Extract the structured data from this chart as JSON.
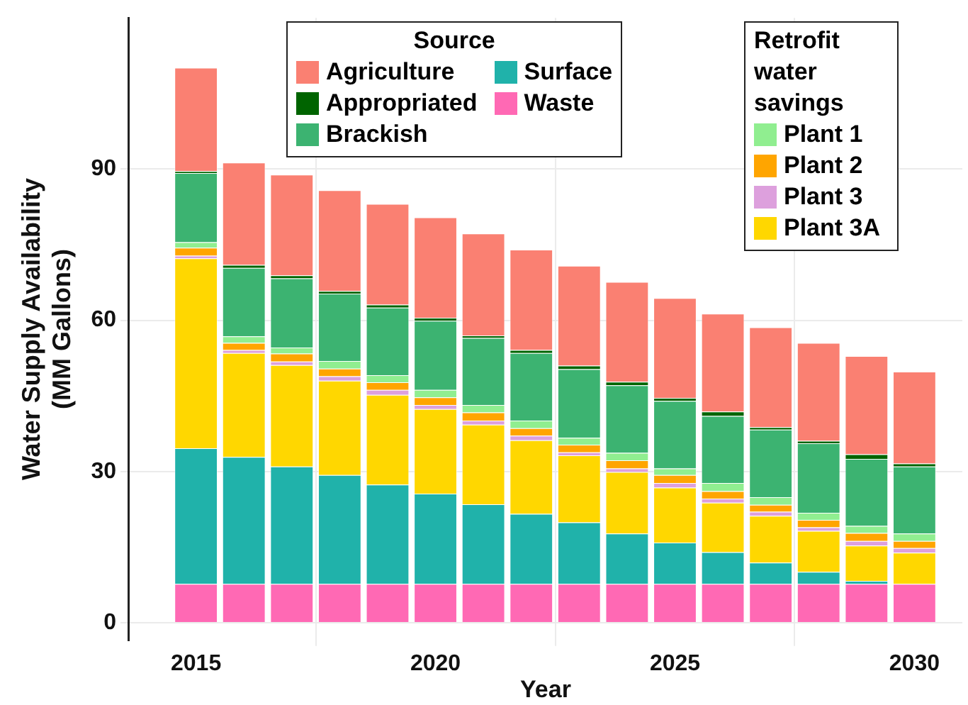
{
  "chart_data": {
    "type": "bar",
    "stacked": true,
    "xlabel": "Year",
    "ylabel": "Water Supply Availability\n(MM Gallons)",
    "legend_title": [
      "Source",
      "Retrofit water savings"
    ],
    "legend": "top",
    "grid": true,
    "x": [
      2015,
      2016,
      2017,
      2018,
      2019,
      2020,
      2021,
      2022,
      2023,
      2024,
      2025,
      2026,
      2027,
      2028,
      2029,
      2030
    ],
    "xlim": [
      2013.6,
      2031
    ],
    "xticks": [
      2015,
      2020,
      2025,
      2030
    ],
    "ylim": [
      -3.5,
      120
    ],
    "yticks": [
      0,
      30,
      60,
      90
    ],
    "series": [
      {
        "name": "Waste",
        "color": "#ff69b4",
        "values": [
          7.7,
          7.7,
          7.7,
          7.7,
          7.7,
          7.7,
          7.7,
          7.7,
          7.7,
          7.7,
          7.7,
          7.7,
          7.7,
          7.7,
          7.7,
          7.7
        ]
      },
      {
        "name": "Surface",
        "color": "#20b2aa",
        "values": [
          26.9,
          25.2,
          23.3,
          21.6,
          19.7,
          17.9,
          15.8,
          13.9,
          12.2,
          10.0,
          8.2,
          6.3,
          4.2,
          2.4,
          0.6,
          0
        ]
      },
      {
        "name": "Plant 3A",
        "color": "#ffd700",
        "values": [
          37.7,
          20.6,
          20.1,
          18.7,
          17.8,
          16.8,
          15.8,
          14.6,
          13.3,
          12.2,
          10.9,
          9.8,
          9.3,
          8.1,
          7.0,
          6.2
        ]
      },
      {
        "name": "Plant 3",
        "color": "#dda0dd",
        "values": [
          0.5,
          0.6,
          0.7,
          0.9,
          1.0,
          0.8,
          0.8,
          0.9,
          0.6,
          0.7,
          0.9,
          0.8,
          0.8,
          0.7,
          0.9,
          0.9
        ]
      },
      {
        "name": "Plant 2",
        "color": "#ffa500",
        "values": [
          1.6,
          1.4,
          1.6,
          1.5,
          1.5,
          1.5,
          1.6,
          1.5,
          1.5,
          1.6,
          1.6,
          1.5,
          1.4,
          1.5,
          1.6,
          1.4
        ]
      },
      {
        "name": "Plant 1",
        "color": "#90ee90",
        "values": [
          1.1,
          1.3,
          1.2,
          1.5,
          1.4,
          1.5,
          1.5,
          1.5,
          1.4,
          1.5,
          1.3,
          1.6,
          1.5,
          1.4,
          1.4,
          1.5
        ]
      },
      {
        "name": "Brackish",
        "color": "#3cb371",
        "values": [
          13.7,
          13.6,
          13.7,
          13.4,
          13.4,
          13.7,
          13.3,
          13.4,
          13.6,
          13.4,
          13.4,
          13.3,
          13.4,
          13.8,
          13.3,
          13.3
        ]
      },
      {
        "name": "Appropriated",
        "color": "#006400",
        "values": [
          0.4,
          0.6,
          0.6,
          0.5,
          0.6,
          0.6,
          0.5,
          0.6,
          0.7,
          0.7,
          0.6,
          0.9,
          0.5,
          0.5,
          0.9,
          0.6
        ]
      },
      {
        "name": "Agriculture",
        "color": "#fa8072",
        "values": [
          20.5,
          20.3,
          20.0,
          20.0,
          20.0,
          19.9,
          20.2,
          19.9,
          19.8,
          19.8,
          19.8,
          19.4,
          19.8,
          19.4,
          19.5,
          18.2
        ]
      }
    ]
  }
}
